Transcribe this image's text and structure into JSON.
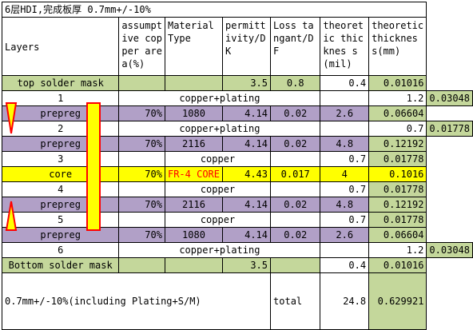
{
  "title": "6层HDI,完成板厚 0.7mm+/-10%",
  "headers": [
    "Layers",
    "assumptive copper area(%)",
    "Material Type",
    "permittivity/DK",
    "Loss tangant/DF",
    "theoretic thicknes s(mil)",
    "theoretic thicknes s(mm)"
  ],
  "rows": [
    {
      "kind": "mask",
      "label": "top solder mask",
      "dk": "3.5",
      "df": "0.8",
      "mil": "0.4",
      "mm": "0.01016"
    },
    {
      "kind": "copper",
      "label": "1",
      "material": "copper+plating",
      "mil": "1.2",
      "mm": "0.03048"
    },
    {
      "kind": "prepreg",
      "label": "prepreg",
      "area": "70%",
      "material": "1080",
      "dk": "4.14",
      "df": "0.02",
      "mil": "2.6",
      "mm": "0.06604"
    },
    {
      "kind": "copper",
      "label": "2",
      "material": "copper+plating",
      "mil": "0.7",
      "mm": "0.01778"
    },
    {
      "kind": "prepreg",
      "label": "prepreg",
      "area": "70%",
      "material": "2116",
      "dk": "4.14",
      "df": "0.02",
      "mil": "4.8",
      "mm": "0.12192"
    },
    {
      "kind": "copper-inner",
      "label": "3",
      "material": "copper",
      "mil": "0.7",
      "mm": "0.01778"
    },
    {
      "kind": "core",
      "label": "core",
      "area": "70%",
      "material": "FR-4 CORE",
      "dk": "4.43",
      "df": "0.017",
      "mil": "4",
      "mm": "0.1016"
    },
    {
      "kind": "copper-inner",
      "label": "4",
      "material": "copper",
      "mil": "0.7",
      "mm": "0.01778"
    },
    {
      "kind": "prepreg",
      "label": "prepreg",
      "area": "70%",
      "material": "2116",
      "dk": "4.14",
      "df": "0.02",
      "mil": "4.8",
      "mm": "0.12192"
    },
    {
      "kind": "copper-inner",
      "label": "5",
      "material": "copper",
      "mil": "0.7",
      "mm": "0.01778"
    },
    {
      "kind": "prepreg",
      "label": "prepreg",
      "area": "70%",
      "material": "1080",
      "dk": "4.14",
      "df": "0.02",
      "mil": "2.6",
      "mm": "0.06604"
    },
    {
      "kind": "copper",
      "label": "6",
      "material": "copper+plating",
      "mil": "1.2",
      "mm": "0.03048"
    },
    {
      "kind": "mask",
      "label": "Bottom solder mask",
      "dk": "3.5",
      "df": "",
      "mil": "0.4",
      "mm": "0.01016"
    }
  ],
  "footer": {
    "note": "0.7mm+/-10%(including Plating+S/M)",
    "total_label": "total",
    "total_mil": "24.8",
    "total_mm": "0.629921"
  },
  "colors": {
    "mask": "#c4d79b",
    "prepreg": "#b1a0c7",
    "core": "#ffff00",
    "via_fill": "#ffff00",
    "via_stroke": "#ff0000"
  }
}
